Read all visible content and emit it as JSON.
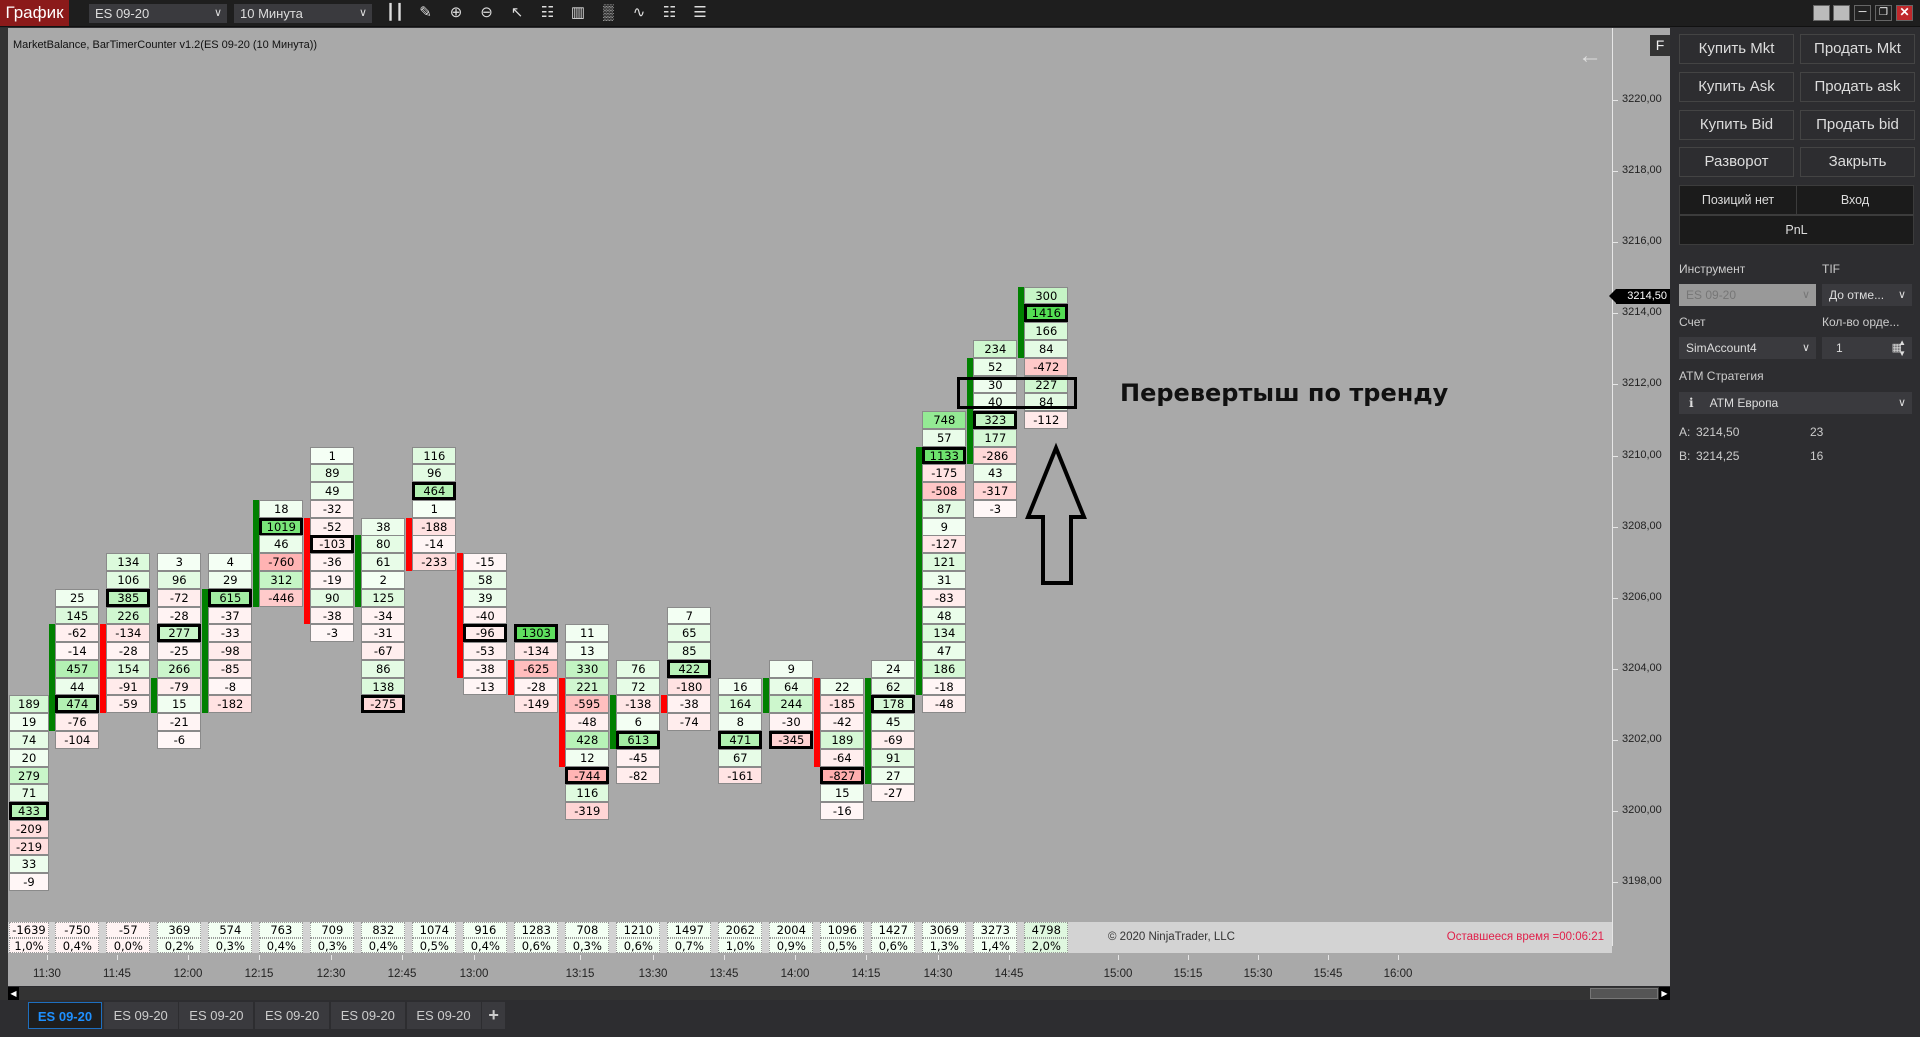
{
  "toolbar": {
    "title": "График",
    "instrument": "ES 09-20",
    "interval": "10 Минута",
    "icons": [
      "chart-style-icon",
      "drawing-tool-icon",
      "zoom-in-icon",
      "zoom-out-icon",
      "pointer-icon",
      "data-box-icon",
      "properties-icon",
      "indicators-icon",
      "strategies-icon",
      "templates-icon",
      "drawing-objects-icon"
    ]
  },
  "chart": {
    "title": "MarketBalance, BarTimerCounter v1.2(ES 09-20 (10 Минута))",
    "f_button": "F",
    "price_labels": [
      "3220,00",
      "3218,00",
      "3216,00",
      "3214,00",
      "3212,00",
      "3210,00",
      "3208,00",
      "3206,00",
      "3204,00",
      "3202,00",
      "3200,00",
      "3198,00"
    ],
    "last_price": "3214,50",
    "tick_size": 0.5,
    "colors": {
      "up_bar": "#008000",
      "down_bar": "#ff0000",
      "background": "#a9a9a9"
    },
    "columns": [
      {
        "high": 3203.0,
        "body": [],
        "body_color": "",
        "cells": [
          189,
          19,
          74,
          20,
          279,
          71,
          433,
          -209,
          -219,
          33,
          -9
        ]
      },
      {
        "high": 3206.0,
        "body": [
          2,
          7
        ],
        "body_color": "up",
        "cells": [
          25,
          145,
          -62,
          -14,
          457,
          44,
          474,
          -76,
          -104
        ]
      },
      {
        "high": 3207.0,
        "body": [
          4,
          8
        ],
        "body_color": "down",
        "cells": [
          134,
          106,
          385,
          226,
          -134,
          -28,
          154,
          -91,
          -59
        ]
      },
      {
        "high": 3207.0,
        "body": [
          7,
          8
        ],
        "body_color": "up",
        "cells": [
          3,
          96,
          -72,
          -28,
          277,
          -25,
          266,
          -79,
          15,
          -21,
          -6
        ]
      },
      {
        "high": 3207.0,
        "body": [
          2,
          8
        ],
        "body_color": "up",
        "cells": [
          4,
          29,
          615,
          -37,
          -33,
          -98,
          -85,
          -8,
          -182
        ]
      },
      {
        "high": 3208.5,
        "body": [
          0,
          5
        ],
        "body_color": "up",
        "cells": [
          18,
          1019,
          46,
          -760,
          312,
          -446
        ]
      },
      {
        "high": 3210.0,
        "body": [
          4,
          9
        ],
        "body_color": "down",
        "cells": [
          1,
          89,
          49,
          -32,
          -52,
          -103,
          -36,
          -19,
          90,
          -38,
          -3
        ]
      },
      {
        "high": 3208.0,
        "body": [
          1,
          4
        ],
        "body_color": "up",
        "cells": [
          38,
          80,
          61,
          2,
          125,
          -34,
          -31,
          -67,
          86,
          138,
          -275
        ]
      },
      {
        "high": 3210.0,
        "body": [
          4,
          6
        ],
        "body_color": "down",
        "cells": [
          116,
          96,
          464,
          1,
          -188,
          -14,
          -233
        ]
      },
      {
        "high": 3207.0,
        "body": [
          0,
          6
        ],
        "body_color": "down",
        "cells": [
          -15,
          58,
          39,
          -40,
          -96,
          -53,
          -38,
          -13
        ]
      },
      {
        "high": 3205.0,
        "body": [
          2,
          3
        ],
        "body_color": "down",
        "cells": [
          1303,
          -134,
          -625,
          -28,
          -149
        ]
      },
      {
        "high": 3205.0,
        "body": [
          3,
          7
        ],
        "body_color": "down",
        "cells": [
          11,
          13,
          330,
          221,
          -595,
          -48,
          428,
          12,
          -744,
          116,
          -319
        ]
      },
      {
        "high": 3204.0,
        "body": [
          2,
          4
        ],
        "body_color": "up",
        "cells": [
          76,
          72,
          -138,
          6,
          613,
          -45,
          -82
        ]
      },
      {
        "high": 3205.5,
        "body": [
          5,
          5
        ],
        "body_color": "down",
        "cells": [
          7,
          65,
          85,
          422,
          -180,
          -38,
          -74
        ]
      },
      {
        "high": 3203.5,
        "body": [],
        "body_color": "",
        "cells": [
          16,
          164,
          8,
          471,
          67,
          -161
        ]
      },
      {
        "high": 3204.0,
        "body": [
          1,
          2
        ],
        "body_color": "up",
        "cells": [
          9,
          64,
          244,
          -30,
          -345
        ]
      },
      {
        "high": 3203.5,
        "body": [
          0,
          4
        ],
        "body_color": "down",
        "cells": [
          22,
          -185,
          -42,
          189,
          -64,
          -827,
          15,
          -16
        ]
      },
      {
        "high": 3204.0,
        "body": [
          1,
          6
        ],
        "body_color": "up",
        "cells": [
          24,
          62,
          178,
          45,
          -69,
          91,
          27,
          -27
        ]
      },
      {
        "high": 3211.0,
        "body": [
          2,
          15
        ],
        "body_color": "up",
        "cells": [
          748,
          57,
          1133,
          -175,
          -508,
          87,
          9,
          -127,
          121,
          31,
          -83,
          48,
          134,
          47,
          186,
          -18,
          -48
        ]
      },
      {
        "high": 3213.0,
        "body": [
          1,
          6
        ],
        "body_color": "up",
        "cells": [
          234,
          52,
          30,
          40,
          323,
          177,
          -286,
          43,
          -317,
          -3
        ]
      },
      {
        "high": 3214.5,
        "body": [
          0,
          3
        ],
        "body_color": "up",
        "cells": [
          300,
          1416,
          166,
          84,
          -472,
          227,
          84,
          -112
        ]
      }
    ],
    "stats_values": [
      "-1639",
      "-750",
      "-57",
      "369",
      "574",
      "763",
      "709",
      "832",
      "1074",
      "916",
      "1283",
      "708",
      "1210",
      "1497",
      "2062",
      "2004",
      "1096",
      "1427",
      "3069",
      "3273",
      "4798"
    ],
    "stats_percents": [
      "1,0%",
      "0,4%",
      "0,0%",
      "0,2%",
      "0,3%",
      "0,4%",
      "0,3%",
      "0,4%",
      "0,5%",
      "0,4%",
      "0,6%",
      "0,3%",
      "0,6%",
      "0,7%",
      "1,0%",
      "0,9%",
      "0,5%",
      "0,6%",
      "1,3%",
      "1,4%",
      "2,0%"
    ],
    "copyright": "© 2020 NinjaTrader, LLC",
    "timer": "Оставшееся время =00:06:21",
    "time_labels": [
      "11:30",
      "11:45",
      "12:00",
      "12:15",
      "12:30",
      "12:45",
      "13:00",
      "13:15",
      "13:30",
      "13:45",
      "14:00",
      "14:15",
      "14:30",
      "14:45",
      "15:00",
      "15:15",
      "15:30",
      "15:45",
      "16:00"
    ],
    "annotation": "Перевертыш по тренду"
  },
  "tabs": [
    {
      "label": "ES 09-20",
      "active": true
    },
    {
      "label": "ES 09-20"
    },
    {
      "label": "ES 09-20"
    },
    {
      "label": "ES 09-20"
    },
    {
      "label": "ES 09-20"
    },
    {
      "label": "ES 09-20"
    }
  ],
  "tab_add": "+",
  "order_panel": {
    "buttons": [
      "Купить Mkt",
      "Продать Mkt",
      "Купить Ask",
      "Продать ask",
      "Купить Bid",
      "Продать bid",
      "Разворот",
      "Закрыть"
    ],
    "position": "Позиций нет",
    "entry": "Вход",
    "pnl": "PnL",
    "instrument_label": "Инструмент",
    "instrument_value": "ES 09-20",
    "tif_label": "TIF",
    "tif_value": "До отме...",
    "account_label": "Счет",
    "account_value": "SimAccount4",
    "qty_label": "Кол-во орде...",
    "qty_value": "1",
    "atm_label": "ATM Стратегия",
    "atm_value": "ATM Европа",
    "ask_label": "A:",
    "ask_price": "3214,50",
    "ask_size": "23",
    "bid_label": "B:",
    "bid_price": "3214,25",
    "bid_size": "16"
  }
}
